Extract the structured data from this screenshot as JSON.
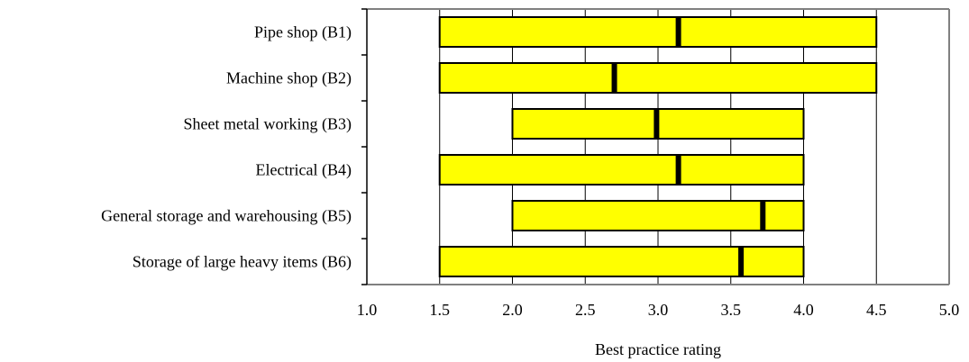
{
  "chart_data": {
    "type": "bar",
    "subtype": "floating-range",
    "categories": [
      "Pipe shop (B1)",
      "Machine shop (B2)",
      "Sheet metal working (B3)",
      "Electrical (B4)",
      "General storage and warehousing (B5)",
      "Storage of large heavy items (B6)"
    ],
    "series": [
      {
        "min": 1.5,
        "max": 4.5,
        "mean": 3.14
      },
      {
        "min": 1.5,
        "max": 4.5,
        "mean": 2.7
      },
      {
        "min": 2.0,
        "max": 4.0,
        "mean": 2.99
      },
      {
        "min": 1.5,
        "max": 4.0,
        "mean": 3.14
      },
      {
        "min": 2.0,
        "max": 4.0,
        "mean": 3.72
      },
      {
        "min": 1.5,
        "max": 4.0,
        "mean": 3.57
      }
    ],
    "x_ticks": [
      "1.0",
      "1.5",
      "2.0",
      "2.5",
      "3.0",
      "3.5",
      "4.0",
      "4.5",
      "5.0"
    ],
    "xlim": [
      1.0,
      5.0
    ],
    "xlabel": "Best practice rating",
    "title": "",
    "ylabel": "",
    "grid": "vertical",
    "legend": "none",
    "colors": {
      "bar_fill": "#ffff00",
      "bar_stroke": "#000000",
      "mean_marker": "#000000",
      "grid": "#000000",
      "frame": "#808080"
    }
  }
}
